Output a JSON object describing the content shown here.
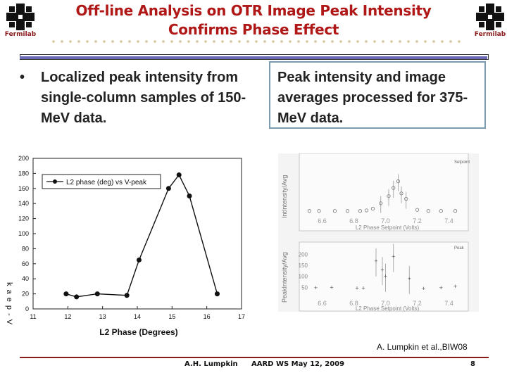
{
  "header": {
    "title_line1": "Off-line Analysis on OTR Image Peak Intensity",
    "title_line2": "Confirms Phase Effect",
    "logo_text": "Fermilab"
  },
  "bullet": {
    "marker": "•",
    "text": "Localized peak intensity from single-column samples of 150-MeV data."
  },
  "right_box": {
    "text": "Peak intensity and image averages processed for 375-MeV data."
  },
  "chart_data": [
    {
      "type": "line",
      "xlabel": "L2 Phase (Degrees)",
      "ylabel": "k a e p - V",
      "x_ticks": [
        "11",
        "12",
        "13",
        "14",
        "15",
        "16",
        "17"
      ],
      "y_ticks": [
        "0",
        "20",
        "40",
        "60",
        "80",
        "100",
        "120",
        "140",
        "160",
        "180",
        "200"
      ],
      "xlim": [
        11,
        17
      ],
      "ylim": [
        0,
        200
      ],
      "grid": false,
      "legend_position": "top-left",
      "series": [
        {
          "name": "L2 phase (deg) vs V-peak",
          "x": [
            11.95,
            12.25,
            12.85,
            13.7,
            14.05,
            14.9,
            15.2,
            15.5,
            16.3
          ],
          "values": [
            20,
            16,
            20,
            18,
            65,
            160,
            178,
            150,
            20
          ]
        }
      ]
    },
    {
      "type": "scatter",
      "ylabel": "IntIntensity/Avg",
      "xlabel": "L2 Phase Setpoint (Volts)",
      "legend": "Setpoint",
      "x_ticks": [
        "6.6",
        "6.8",
        "7.0",
        "7.2",
        "7.4"
      ],
      "xlim": [
        6.5,
        7.5
      ],
      "points": [
        {
          "x": 6.52,
          "y": 0.08
        },
        {
          "x": 6.58,
          "y": 0.08
        },
        {
          "x": 6.68,
          "y": 0.08
        },
        {
          "x": 6.76,
          "y": 0.08
        },
        {
          "x": 6.84,
          "y": 0.08
        },
        {
          "x": 6.88,
          "y": 0.09
        },
        {
          "x": 6.92,
          "y": 0.12
        },
        {
          "x": 6.97,
          "y": 0.22
        },
        {
          "x": 7.02,
          "y": 0.35
        },
        {
          "x": 7.05,
          "y": 0.5
        },
        {
          "x": 7.08,
          "y": 0.62
        },
        {
          "x": 7.1,
          "y": 0.4
        },
        {
          "x": 7.13,
          "y": 0.3
        },
        {
          "x": 7.2,
          "y": 0.1
        },
        {
          "x": 7.27,
          "y": 0.08
        },
        {
          "x": 7.35,
          "y": 0.08
        },
        {
          "x": 7.44,
          "y": 0.08
        }
      ]
    },
    {
      "type": "scatter",
      "ylabel": "PeakIntensity/Avg",
      "xlabel": "L2 Phase Setpoint (Volts)",
      "legend": "Peak",
      "x_ticks": [
        "6.6",
        "6.8",
        "7.0",
        "7.2",
        "7.4"
      ],
      "y_ticks": [
        "50",
        "100",
        "150",
        "200"
      ],
      "xlim": [
        6.5,
        7.5
      ],
      "ylim": [
        0,
        230
      ],
      "points": [
        {
          "x": 6.56,
          "y": 48
        },
        {
          "x": 6.66,
          "y": 50
        },
        {
          "x": 6.82,
          "y": 46
        },
        {
          "x": 6.86,
          "y": 46
        },
        {
          "x": 6.94,
          "y": 170
        },
        {
          "x": 6.98,
          "y": 130
        },
        {
          "x": 7.0,
          "y": 100
        },
        {
          "x": 7.05,
          "y": 190
        },
        {
          "x": 7.15,
          "y": 90
        },
        {
          "x": 7.24,
          "y": 45
        },
        {
          "x": 7.35,
          "y": 48
        },
        {
          "x": 7.44,
          "y": 55
        }
      ]
    }
  ],
  "caption": "A. Lumpkin et al.,BIW08",
  "footer": {
    "author": "A.H. Lumpkin",
    "venue": "AARD WS  May 12, 2009",
    "page": "8"
  },
  "colors": {
    "title": "#b01818",
    "rule": "#6b6bb5",
    "box_border": "#7a9cb0",
    "footer_line": "#8b1a1a"
  }
}
